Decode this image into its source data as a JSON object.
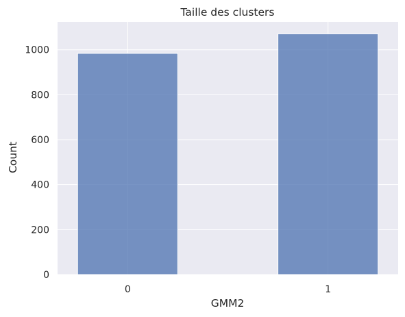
{
  "chart_data": {
    "type": "bar",
    "title": "Taille des clusters",
    "xlabel": "GMM2",
    "ylabel": "Count",
    "categories": [
      "0",
      "1"
    ],
    "values": [
      984,
      1071
    ],
    "ylim": [
      0,
      1124
    ],
    "yticks": [
      0,
      200,
      400,
      600,
      800,
      1000
    ],
    "grid": true,
    "legend": "none",
    "colors": {
      "bar_fill": "#4c72b0",
      "bar_opacity": 0.75,
      "bar_edge": "#ffffff",
      "plot_background": "#eaeaf2",
      "grid": "#ffffff"
    }
  }
}
